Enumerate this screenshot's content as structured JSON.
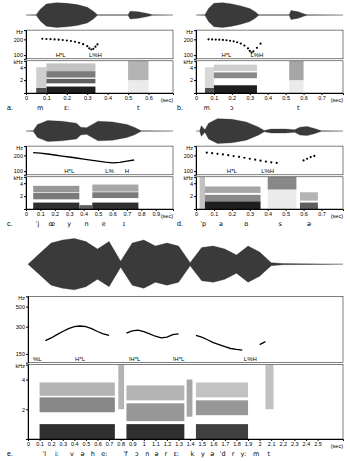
{
  "chart_data": [
    {
      "type": "line",
      "label": "a.",
      "x_label": "(sec)",
      "xlim": [
        0,
        0.72
      ],
      "xticks": [
        0,
        0.1,
        0.2,
        0.3,
        0.4,
        0.5,
        0.6
      ],
      "y_label": "Hz",
      "log": "y",
      "ylim": [
        85,
        300
      ],
      "yticks": [
        100,
        200
      ],
      "marker": "circle",
      "x": [
        0.08,
        0.1,
        0.12,
        0.14,
        0.16,
        0.18,
        0.2,
        0.22,
        0.24,
        0.26,
        0.28,
        0.3,
        0.31,
        0.32,
        0.33,
        0.34,
        0.35
      ],
      "values": [
        205,
        203,
        201,
        199,
        197,
        194,
        190,
        186,
        180,
        172,
        162,
        148,
        135,
        128,
        132,
        145,
        160
      ],
      "tones": [
        {
          "text": "H*L",
          "x": 0.17
        },
        {
          "text": "L%H",
          "x": 0.34
        }
      ],
      "segments": [
        {
          "text": "m",
          "x": 0.07
        },
        {
          "text": "ɛː",
          "x": 0.2
        },
        {
          "text": "t",
          "x": 0.55
        }
      ],
      "waveform": {
        "ylim": [
          -1,
          1
        ],
        "x": [
          0,
          0.05,
          0.07,
          0.1,
          0.15,
          0.2,
          0.25,
          0.3,
          0.33,
          0.35,
          0.5,
          0.51,
          0.55,
          0.6,
          0.62,
          0.72
        ],
        "values": [
          0,
          0.02,
          0.45,
          0.85,
          0.95,
          0.9,
          0.8,
          0.6,
          0.3,
          0.02,
          0.02,
          0.3,
          0.25,
          0.1,
          0.02,
          0
        ]
      },
      "spectrogram": {
        "y_label": "kHz",
        "ylim": [
          0,
          5
        ],
        "yticks": [
          2,
          4
        ],
        "cells": [
          [
            0.05,
            0.1,
            0,
            0.8,
            0.75
          ],
          [
            0.05,
            0.1,
            0.8,
            4,
            0.3
          ],
          [
            0.1,
            0.34,
            0,
            1,
            0.9
          ],
          [
            0.1,
            0.34,
            1.5,
            2.2,
            0.7
          ],
          [
            0.1,
            0.34,
            2.4,
            3.4,
            0.6
          ],
          [
            0.1,
            0.34,
            3.4,
            4.6,
            0.35
          ],
          [
            0.5,
            0.6,
            0,
            2,
            0.15
          ],
          [
            0.5,
            0.6,
            2,
            5,
            0.4
          ]
        ]
      }
    },
    {
      "type": "line",
      "label": "b.",
      "x_label": "(sec)",
      "xlim": [
        0,
        0.82
      ],
      "xticks": [
        0,
        0.1,
        0.2,
        0.3,
        0.4,
        0.5,
        0.6,
        0.7
      ],
      "y_label": "Hz",
      "log": "y",
      "ylim": [
        85,
        300
      ],
      "yticks": [
        100,
        200
      ],
      "marker": "circle",
      "x": [
        0.07,
        0.09,
        0.11,
        0.13,
        0.15,
        0.17,
        0.19,
        0.21,
        0.23,
        0.25,
        0.27,
        0.29,
        0.3,
        0.31,
        0.32,
        0.34,
        0.36
      ],
      "values": [
        200,
        199,
        198,
        197,
        195,
        192,
        188,
        183,
        176,
        166,
        152,
        135,
        120,
        112,
        118,
        138,
        165
      ],
      "tones": [
        {
          "text": "H*L",
          "x": 0.17
        },
        {
          "text": "L%H",
          "x": 0.34
        }
      ],
      "segments": [
        {
          "text": "m",
          "x": 0.06
        },
        {
          "text": "ɔ",
          "x": 0.2
        },
        {
          "text": "t",
          "x": 0.57
        }
      ],
      "waveform": {
        "ylim": [
          -1,
          1
        ],
        "x": [
          0,
          0.05,
          0.07,
          0.1,
          0.15,
          0.2,
          0.25,
          0.3,
          0.33,
          0.35,
          0.52,
          0.53,
          0.57,
          0.6,
          0.62,
          0.82
        ],
        "values": [
          0,
          0.02,
          0.5,
          0.9,
          0.95,
          0.85,
          0.7,
          0.5,
          0.25,
          0.02,
          0.02,
          0.35,
          0.25,
          0.1,
          0.02,
          0
        ]
      },
      "spectrogram": {
        "y_label": "kHz",
        "ylim": [
          0,
          5
        ],
        "yticks": [
          2,
          4
        ],
        "cells": [
          [
            0.05,
            0.1,
            0,
            0.8,
            0.75
          ],
          [
            0.05,
            0.1,
            0.8,
            4,
            0.25
          ],
          [
            0.1,
            0.34,
            0,
            1.2,
            0.9
          ],
          [
            0.1,
            0.34,
            2.3,
            3.2,
            0.55
          ],
          [
            0.1,
            0.34,
            3.4,
            4.4,
            0.3
          ],
          [
            0.52,
            0.6,
            0,
            2,
            0.15
          ],
          [
            0.52,
            0.6,
            2,
            5,
            0.45
          ]
        ]
      }
    },
    {
      "type": "line",
      "label": "c.",
      "x_label": "(sec)",
      "xlim": [
        0,
        1.02
      ],
      "xticks": [
        0,
        0.1,
        0.2,
        0.3,
        0.4,
        0.5,
        0.6,
        0.7,
        0.8,
        0.9
      ],
      "y_label": "Hz",
      "log": "y",
      "ylim": [
        85,
        300
      ],
      "yticks": [
        100,
        200
      ],
      "line_style": "solid",
      "x": [
        0.05,
        0.1,
        0.15,
        0.2,
        0.25,
        0.3,
        0.35,
        0.4,
        0.45,
        0.5,
        0.55,
        0.6,
        0.65,
        0.7,
        0.75
      ],
      "values": [
        225,
        220,
        212,
        203,
        194,
        186,
        178,
        170,
        162,
        155,
        148,
        144,
        147,
        155,
        163
      ],
      "tones": [
        {
          "text": "H*L",
          "x": 0.3
        },
        {
          "text": "L%",
          "x": 0.58
        },
        {
          "text": "H",
          "x": 0.7
        }
      ],
      "segments": [
        {
          "text": "ˈj",
          "x": 0.08
        },
        {
          "text": "œ",
          "x": 0.18
        },
        {
          "text": "y",
          "x": 0.3
        },
        {
          "text": "n",
          "x": 0.42
        },
        {
          "text": "e",
          "x": 0.54
        },
        {
          "text": "ɪ",
          "x": 0.68
        }
      ],
      "waveform": {
        "ylim": [
          -1,
          1
        ],
        "x": [
          0,
          0.05,
          0.08,
          0.15,
          0.25,
          0.35,
          0.38,
          0.42,
          0.46,
          0.5,
          0.6,
          0.7,
          0.75,
          0.8,
          1.02
        ],
        "values": [
          0,
          0.02,
          0.5,
          0.8,
          0.75,
          0.6,
          0.3,
          0.25,
          0.5,
          0.75,
          0.7,
          0.5,
          0.3,
          0.02,
          0
        ]
      },
      "spectrogram": {
        "y_label": "kHz",
        "ylim": [
          0,
          5
        ],
        "yticks": [
          2,
          4
        ],
        "cells": [
          [
            0.05,
            0.37,
            0,
            1,
            0.85
          ],
          [
            0.05,
            0.37,
            1.5,
            2.5,
            0.6
          ],
          [
            0.05,
            0.37,
            2.6,
            3.6,
            0.5
          ],
          [
            0.37,
            0.46,
            0,
            0.6,
            0.7
          ],
          [
            0.46,
            0.78,
            0,
            1,
            0.85
          ],
          [
            0.46,
            0.78,
            1.7,
            2.6,
            0.6
          ],
          [
            0.46,
            0.78,
            2.7,
            3.8,
            0.45
          ]
        ]
      }
    },
    {
      "type": "line",
      "label": "d.",
      "x_label": "(sec)",
      "xlim": [
        0,
        0.82
      ],
      "xticks": [
        0,
        0.1,
        0.2,
        0.3,
        0.4,
        0.5,
        0.6,
        0.7
      ],
      "y_label": "Hz",
      "log": "y",
      "ylim": [
        85,
        300
      ],
      "yticks": [
        100,
        200
      ],
      "marker": "circle",
      "x": [
        0.06,
        0.09,
        0.12,
        0.15,
        0.18,
        0.21,
        0.24,
        0.27,
        0.3,
        0.33,
        0.36,
        0.39,
        0.42,
        0.45,
        0.48,
        0.51,
        0.54,
        0.57,
        0.6,
        0.62,
        0.64,
        0.66
      ],
      "values": [
        225,
        220,
        214,
        208,
        201,
        194,
        187,
        180,
        172,
        165,
        158,
        152,
        147,
        143,
        null,
        null,
        null,
        null,
        160,
        172,
        185,
        195
      ],
      "tones": [
        {
          "text": "H*L",
          "x": 0.2
        },
        {
          "text": "L%H",
          "x": 0.4
        }
      ],
      "segments": [
        {
          "text": "ˈp",
          "x": 0.04
        },
        {
          "text": "a",
          "x": 0.14
        },
        {
          "text": "ʊ",
          "x": 0.28
        },
        {
          "text": "s",
          "x": 0.47
        },
        {
          "text": "ə",
          "x": 0.63
        }
      ],
      "waveform": {
        "ylim": [
          -1,
          1
        ],
        "x": [
          0,
          0.02,
          0.03,
          0.05,
          0.07,
          0.12,
          0.2,
          0.28,
          0.35,
          0.38,
          0.42,
          0.5,
          0.55,
          0.58,
          0.62,
          0.66,
          0.7,
          0.82
        ],
        "values": [
          0,
          0,
          0.4,
          0.1,
          0.6,
          0.95,
          0.9,
          0.7,
          0.3,
          0.05,
          0.15,
          0.15,
          0.1,
          0.3,
          0.35,
          0.2,
          0.02,
          0
        ]
      },
      "spectrogram": {
        "y_label": "kHz",
        "ylim": [
          0,
          5
        ],
        "yticks": [
          2,
          4
        ],
        "cells": [
          [
            0.02,
            0.05,
            0,
            5,
            0.35
          ],
          [
            0.05,
            0.36,
            0,
            1.2,
            0.9
          ],
          [
            0.05,
            0.36,
            1.2,
            2.2,
            0.55
          ],
          [
            0.05,
            0.36,
            2.5,
            3.5,
            0.45
          ],
          [
            0.4,
            0.56,
            3,
            5,
            0.55
          ],
          [
            0.4,
            0.56,
            0,
            3,
            0.15
          ],
          [
            0.58,
            0.68,
            0,
            1,
            0.7
          ],
          [
            0.58,
            0.68,
            1.3,
            2.6,
            0.4
          ]
        ]
      }
    },
    {
      "type": "line",
      "label": "e.",
      "x_label": "(sec)",
      "xlim": [
        0,
        2.72
      ],
      "xticks": [
        0,
        0.1,
        0.2,
        0.3,
        0.4,
        0.5,
        0.6,
        0.7,
        0.8,
        0.9,
        1,
        1.1,
        1.2,
        1.3,
        1.4,
        1.5,
        1.6,
        1.7,
        1.8,
        1.9,
        2,
        2.1,
        2.2,
        2.3,
        2.4,
        2.5
      ],
      "y_label": "Hz",
      "log": "y",
      "ylim": [
        120,
        650
      ],
      "yticks": [
        150,
        300,
        500
      ],
      "line_style": "solid",
      "x": [
        0.15,
        0.2,
        0.25,
        0.3,
        0.35,
        0.4,
        0.45,
        0.5,
        0.55,
        0.6,
        0.65,
        0.7,
        0.75,
        0.8,
        0.85,
        0.9,
        0.95,
        1,
        1.05,
        1.1,
        1.15,
        1.2,
        1.25,
        1.3,
        1.35,
        1.4,
        1.45,
        1.5,
        1.55,
        1.6,
        1.65,
        1.7,
        1.75,
        1.8,
        1.85,
        1.9,
        1.95,
        2,
        2.05
      ],
      "values": [
        210,
        225,
        245,
        265,
        285,
        300,
        305,
        300,
        285,
        265,
        250,
        240,
        null,
        null,
        255,
        270,
        275,
        265,
        250,
        235,
        225,
        230,
        245,
        250,
        null,
        null,
        240,
        230,
        215,
        200,
        190,
        180,
        172,
        168,
        165,
        null,
        null,
        190,
        205
      ],
      "tones": [
        {
          "text": "%L",
          "x": 0.08
        },
        {
          "text": "H*L",
          "x": 0.45
        },
        {
          "text": "!H*L",
          "x": 0.92
        },
        {
          "text": "!H*L",
          "x": 1.3
        },
        {
          "text": "L%H",
          "x": 1.92
        }
      ],
      "segments": [
        {
          "text": "ˈl",
          "x": 0.14
        },
        {
          "text": "iː",
          "x": 0.25
        },
        {
          "text": "v",
          "x": 0.38
        },
        {
          "text": "ə",
          "x": 0.47
        },
        {
          "text": "h",
          "x": 0.56
        },
        {
          "text": "eː",
          "x": 0.66
        },
        {
          "text": "ˈf",
          "x": 0.84
        },
        {
          "text": "ɔ",
          "x": 0.94
        },
        {
          "text": "n",
          "x": 1.03
        },
        {
          "text": "ə",
          "x": 1.11
        },
        {
          "text": "r",
          "x": 1.19
        },
        {
          "text": "ɛː",
          "x": 1.28
        },
        {
          "text": "k",
          "x": 1.42
        },
        {
          "text": "y",
          "x": 1.51
        },
        {
          "text": "ə",
          "x": 1.59
        },
        {
          "text": "ˈd",
          "x": 1.68
        },
        {
          "text": "r",
          "x": 1.77
        },
        {
          "text": "yː",
          "x": 1.86
        },
        {
          "text": "m",
          "x": 1.97
        },
        {
          "text": "t",
          "x": 2.08
        }
      ],
      "waveform": {
        "ylim": [
          -1,
          1
        ],
        "x": [
          0,
          0.1,
          0.2,
          0.3,
          0.4,
          0.5,
          0.6,
          0.7,
          0.8,
          0.9,
          1,
          1.1,
          1.2,
          1.3,
          1.4,
          1.5,
          1.6,
          1.7,
          1.8,
          1.9,
          2,
          2.1,
          2.2,
          2.72
        ],
        "values": [
          0,
          0.35,
          0.7,
          0.8,
          0.85,
          0.75,
          0.5,
          0.75,
          0.1,
          0.7,
          0.8,
          0.6,
          0.7,
          0.6,
          0.05,
          0.55,
          0.6,
          0.5,
          0.3,
          0.6,
          0.4,
          0.05,
          0.02,
          0
        ]
      },
      "spectrogram": {
        "y_label": "kHz",
        "ylim": [
          0,
          5
        ],
        "yticks": [
          2,
          4
        ],
        "cells": [
          [
            0.1,
            0.75,
            0,
            1,
            0.85
          ],
          [
            0.1,
            0.75,
            1.8,
            2.8,
            0.55
          ],
          [
            0.1,
            0.75,
            2.9,
            3.8,
            0.4
          ],
          [
            0.78,
            0.83,
            2,
            5,
            0.4
          ],
          [
            0.85,
            1.35,
            0,
            1,
            0.85
          ],
          [
            0.85,
            1.35,
            1.2,
            2.4,
            0.5
          ],
          [
            0.85,
            1.35,
            2.6,
            3.6,
            0.4
          ],
          [
            1.37,
            1.42,
            1.5,
            4,
            0.45
          ],
          [
            1.45,
            1.9,
            0,
            1,
            0.8
          ],
          [
            1.45,
            1.9,
            1.6,
            2.6,
            0.5
          ],
          [
            1.45,
            1.9,
            2.8,
            3.8,
            0.35
          ],
          [
            2.05,
            2.12,
            2,
            5,
            0.35
          ]
        ]
      }
    }
  ]
}
